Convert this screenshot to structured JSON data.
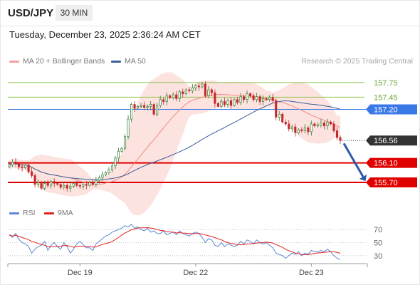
{
  "header": {
    "symbol": "USD/JPY",
    "interval": "30 MIN"
  },
  "datetime": "Tuesday, December 23, 2025 2:36:24 AM CET",
  "legend_main": [
    {
      "label": "MA 20 + Bollinger Bands",
      "color": "#f4a09a"
    },
    {
      "label": "MA 50",
      "color": "#3a5f9b"
    }
  ],
  "legend_rsi": [
    {
      "label": "RSI",
      "color": "#5b87d6"
    },
    {
      "label": "9MA",
      "color": "#e02020"
    }
  ],
  "research": "Research © 2025 Trading Central",
  "colors": {
    "up": "#2e7d32",
    "down": "#c62828",
    "resistance": "#8bc34a",
    "pivot": "#3b78e7",
    "support": "#e00000",
    "current": "#333333",
    "arrow": "#2f5aa8"
  },
  "chart_data": [
    {
      "type": "candlestick",
      "ylim": [
        155.32,
        158.04
      ],
      "levels": [
        {
          "value": 157.75,
          "label": "157.75",
          "role": "resistance"
        },
        {
          "value": 157.45,
          "label": "157.45",
          "role": "resistance"
        },
        {
          "value": 157.2,
          "label": "157.20",
          "role": "pivot"
        },
        {
          "value": 156.56,
          "label": "156.56",
          "role": "current"
        },
        {
          "value": 156.1,
          "label": "156.10",
          "role": "support"
        },
        {
          "value": 155.7,
          "label": "155.70",
          "role": "support"
        }
      ],
      "xticks": [
        {
          "index": 22,
          "label": "Dec 19"
        },
        {
          "index": 58,
          "label": "Dec 22"
        },
        {
          "index": 94,
          "label": "Dec 23"
        }
      ],
      "price_close": [
        156.06,
        156.12,
        156.08,
        156.02,
        156.0,
        156.06,
        155.92,
        155.84,
        155.66,
        155.7,
        155.58,
        155.68,
        155.64,
        155.72,
        155.68,
        155.66,
        155.6,
        155.64,
        155.58,
        155.62,
        155.68,
        155.64,
        155.62,
        155.66,
        155.64,
        155.7,
        155.66,
        155.74,
        155.8,
        155.86,
        155.9,
        155.96,
        156.04,
        156.2,
        156.34,
        156.4,
        156.64,
        157.0,
        157.3,
        157.22,
        157.26,
        157.28,
        157.24,
        157.26,
        157.3,
        157.1,
        157.28,
        157.4,
        157.36,
        157.48,
        157.44,
        157.5,
        157.42,
        157.56,
        157.52,
        157.6,
        157.58,
        157.64,
        157.68,
        157.66,
        157.72,
        157.48,
        157.6,
        157.54,
        157.32,
        157.26,
        157.36,
        157.3,
        157.38,
        157.28,
        157.4,
        157.34,
        157.46,
        157.4,
        157.52,
        157.48,
        157.4,
        157.46,
        157.36,
        157.42,
        157.4,
        157.44,
        157.38,
        157.04,
        157.1,
        156.94,
        156.9,
        156.8,
        156.84,
        156.72,
        156.78,
        156.76,
        156.82,
        156.74,
        156.9,
        156.86,
        156.88,
        156.92,
        156.86,
        156.94,
        156.9,
        156.76,
        156.62,
        156.56
      ],
      "rsi": {
        "ylim": [
          20,
          80
        ],
        "ticks": [
          30,
          50,
          70
        ]
      },
      "rsi_values": [
        62,
        58,
        64,
        55,
        50,
        48,
        44,
        34,
        40,
        44,
        46,
        52,
        38,
        46,
        50,
        44,
        40,
        50,
        44,
        34,
        40,
        48,
        52,
        47,
        42,
        42,
        38,
        48,
        52,
        56,
        60,
        62,
        66,
        68,
        70,
        72,
        76,
        74,
        78,
        72,
        74,
        70,
        68,
        72,
        66,
        68,
        64,
        64,
        68,
        62,
        64,
        66,
        62,
        68,
        64,
        62,
        60,
        64,
        66,
        64,
        58,
        50,
        56,
        54,
        46,
        44,
        50,
        44,
        48,
        46,
        44,
        46,
        52,
        48,
        54,
        52,
        48,
        54,
        50,
        48,
        50,
        46,
        42,
        34,
        32,
        30,
        26,
        30,
        34,
        32,
        36,
        30,
        34,
        32,
        38,
        36,
        36,
        38,
        36,
        40,
        36,
        30,
        26,
        24
      ]
    }
  ]
}
